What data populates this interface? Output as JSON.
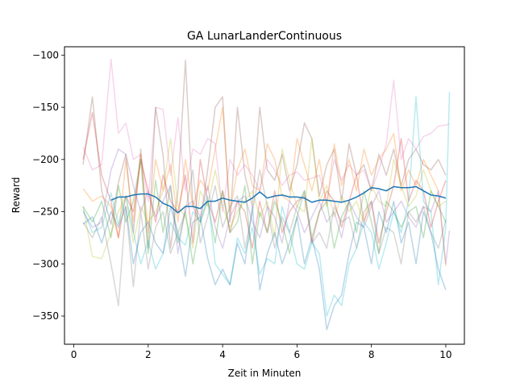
{
  "chart_data": {
    "type": "line",
    "title": "GA LunarLanderContinuous",
    "xlabel": "Zeit in Minuten",
    "ylabel": "Reward",
    "xlim": [
      -0.25,
      10.5
    ],
    "ylim": [
      -377,
      -92
    ],
    "xticks": [
      0,
      2,
      4,
      6,
      8,
      10
    ],
    "yticks": [
      -350,
      -300,
      -250,
      -200,
      -150,
      -100
    ],
    "grid": false,
    "legend": "none",
    "background_series_alpha": 0.3,
    "series": [
      {
        "color": "#e377c2",
        "x": [
          0.25,
          0.5,
          0.75,
          1.0,
          1.2,
          1.4,
          1.6,
          1.8,
          2.0,
          2.2,
          2.4,
          2.6,
          2.8,
          3.0,
          3.2,
          3.4,
          3.6,
          3.8,
          4.0,
          4.2,
          4.4,
          4.6,
          4.8,
          5.0,
          5.2,
          5.4,
          5.6,
          5.8,
          6.0,
          6.2,
          6.4,
          6.6,
          6.8,
          7.0,
          7.2,
          7.4,
          7.6,
          7.8,
          8.0,
          8.2,
          8.4,
          8.6,
          8.8,
          9.0,
          9.2,
          9.4,
          9.6,
          9.8,
          10.0,
          10.1
        ],
        "values": [
          -188,
          -210,
          -205,
          -104,
          -175,
          -165,
          -200,
          -195,
          -240,
          -150,
          -152,
          -215,
          -160,
          -230,
          -190,
          -195,
          -180,
          -185,
          -250,
          -200,
          -215,
          -205,
          -215,
          -230,
          -200,
          -210,
          -225,
          -215,
          -212,
          -220,
          -218,
          -215,
          -240,
          -200,
          -220,
          -205,
          -215,
          -210,
          -230,
          -210,
          -185,
          -124,
          -200,
          -180,
          -190,
          -178,
          -175,
          -168,
          -167,
          -166
        ]
      },
      {
        "color": "#8c564b",
        "x": [
          0.25,
          0.5,
          0.75,
          1.0,
          1.2,
          1.4,
          1.6,
          1.8,
          2.0,
          2.2,
          2.4,
          2.6,
          2.8,
          3.0,
          3.2,
          3.4,
          3.6,
          3.8,
          4.0,
          4.2,
          4.4,
          4.6,
          4.8,
          5.0,
          5.2,
          5.4,
          5.6,
          5.8,
          6.0,
          6.2,
          6.4,
          6.6,
          6.8,
          7.0,
          7.2,
          7.4,
          7.6,
          7.8,
          8.0,
          8.2,
          8.4,
          8.6,
          8.8,
          9.0,
          9.2,
          9.4,
          9.6,
          9.8,
          10.0
        ],
        "values": [
          -205,
          -140,
          -230,
          -262,
          -222,
          -195,
          -270,
          -190,
          -285,
          -150,
          -196,
          -285,
          -230,
          -105,
          -245,
          -260,
          -210,
          -150,
          -140,
          -260,
          -150,
          -215,
          -245,
          -150,
          -210,
          -220,
          -195,
          -230,
          -205,
          -165,
          -180,
          -235,
          -205,
          -190,
          -240,
          -185,
          -215,
          -205,
          -230,
          -195,
          -215,
          -190,
          -225,
          -200,
          -190,
          -205,
          -210,
          -200,
          -215
        ]
      },
      {
        "color": "#ff7f0e",
        "x": [
          0.25,
          0.5,
          0.75,
          1.0,
          1.2,
          1.4,
          1.6,
          1.8,
          2.0,
          2.2,
          2.4,
          2.6,
          2.8,
          3.0,
          3.2,
          3.4,
          3.6,
          3.8,
          4.0,
          4.2,
          4.4,
          4.6,
          4.8,
          5.0,
          5.2,
          5.4,
          5.6,
          5.8,
          6.0,
          6.2,
          6.4,
          6.6,
          6.8,
          7.0,
          7.2,
          7.4,
          7.6,
          7.8,
          8.0,
          8.2,
          8.4,
          8.6,
          8.8,
          9.0,
          9.2,
          9.4,
          9.6,
          9.8,
          10.0
        ],
        "values": [
          -228,
          -240,
          -235,
          -245,
          -275,
          -200,
          -260,
          -195,
          -270,
          -200,
          -230,
          -205,
          -260,
          -200,
          -245,
          -220,
          -230,
          -190,
          -150,
          -250,
          -210,
          -190,
          -225,
          -230,
          -185,
          -200,
          -235,
          -240,
          -180,
          -205,
          -230,
          -200,
          -245,
          -185,
          -225,
          -200,
          -230,
          -190,
          -215,
          -200,
          -190,
          -175,
          -230,
          -210,
          -225,
          -200,
          -215,
          -230,
          -302
        ]
      },
      {
        "color": "#d62728",
        "x": [
          0.25,
          0.5,
          0.75,
          1.0,
          1.2,
          1.4,
          1.6,
          1.8,
          2.0,
          2.2,
          2.4,
          2.6,
          2.8,
          3.0,
          3.2,
          3.4,
          3.6,
          3.8,
          4.0,
          4.2,
          4.4,
          4.6,
          4.8,
          5.0,
          5.2,
          5.4,
          5.6,
          5.8,
          6.0,
          6.2,
          6.4,
          6.6,
          6.8,
          7.0,
          7.2,
          7.4,
          7.6,
          7.8,
          8.0,
          8.2,
          8.4,
          8.6,
          8.8,
          9.0,
          9.2,
          9.4,
          9.6,
          9.8,
          10.0
        ],
        "values": [
          -200,
          -155,
          -215,
          -240,
          -275,
          -235,
          -250,
          -200,
          -230,
          -260,
          -215,
          -240,
          -250,
          -215,
          -280,
          -200,
          -240,
          -260,
          -230,
          -270,
          -240,
          -250,
          -285,
          -240,
          -270,
          -230,
          -270,
          -250,
          -240,
          -235,
          -280,
          -250,
          -230,
          -240,
          -265,
          -240,
          -215,
          -260,
          -240,
          -280,
          -250,
          -225,
          -180,
          -240,
          -220,
          -230,
          -265,
          -240,
          -220
        ]
      },
      {
        "color": "#bcbd22",
        "x": [
          0.25,
          0.5,
          0.75,
          1.0,
          1.2,
          1.4,
          1.6,
          1.8,
          2.0,
          2.2,
          2.4,
          2.6,
          2.8,
          3.0,
          3.2,
          3.4,
          3.6,
          3.8,
          4.0,
          4.2,
          4.4,
          4.6,
          4.8,
          5.0,
          5.2,
          5.4,
          5.6,
          5.8,
          6.0,
          6.2,
          6.4,
          6.6,
          6.8,
          7.0,
          7.2,
          7.4,
          7.6,
          7.8,
          8.0,
          8.2,
          8.4,
          8.6,
          8.8,
          9.0,
          9.2,
          9.4,
          9.6,
          9.8,
          10.0
        ],
        "values": [
          -245,
          -293,
          -295,
          -270,
          -250,
          -235,
          -280,
          -245,
          -260,
          -250,
          -230,
          -180,
          -245,
          -255,
          -285,
          -230,
          -245,
          -210,
          -245,
          -265,
          -250,
          -240,
          -230,
          -255,
          -240,
          -275,
          -190,
          -220,
          -245,
          -250,
          -180,
          -240,
          -225,
          -255,
          -235,
          -250,
          -240,
          -260,
          -225,
          -240,
          -245,
          -200,
          -225,
          -245,
          -235,
          -210,
          -230,
          -245,
          -240
        ]
      },
      {
        "color": "#2ca02c",
        "x": [
          0.25,
          0.5,
          0.75,
          1.0,
          1.2,
          1.4,
          1.6,
          1.8,
          2.0,
          2.2,
          2.4,
          2.6,
          2.8,
          3.0,
          3.2,
          3.4,
          3.6,
          3.8,
          4.0,
          4.2,
          4.4,
          4.6,
          4.8,
          5.0,
          5.2,
          5.4,
          5.6,
          5.8,
          6.0,
          6.2,
          6.4,
          6.6,
          6.8,
          7.0,
          7.2,
          7.4,
          7.6,
          7.8,
          8.0,
          8.2,
          8.4,
          8.6,
          8.8,
          9.0,
          9.2,
          9.4,
          9.6,
          9.8,
          10.0
        ],
        "values": [
          -245,
          -260,
          -240,
          -275,
          -225,
          -260,
          -240,
          -200,
          -290,
          -220,
          -270,
          -225,
          -280,
          -250,
          -300,
          -260,
          -240,
          -280,
          -230,
          -270,
          -260,
          -225,
          -300,
          -250,
          -270,
          -240,
          -260,
          -290,
          -255,
          -230,
          -275,
          -250,
          -240,
          -285,
          -255,
          -240,
          -270,
          -230,
          -260,
          -290,
          -240,
          -250,
          -265,
          -250,
          -245,
          -275,
          -230,
          -245,
          -260
        ]
      },
      {
        "color": "#9467bd",
        "x": [
          0.25,
          0.5,
          0.75,
          1.0,
          1.2,
          1.4,
          1.6,
          1.8,
          2.0,
          2.2,
          2.4,
          2.6,
          2.8,
          3.0,
          3.2,
          3.4,
          3.6,
          3.8,
          4.0,
          4.2,
          4.4,
          4.6,
          4.8,
          5.0,
          5.2,
          5.4,
          5.6,
          5.8,
          6.0,
          6.2,
          6.4,
          6.6,
          6.8,
          7.0,
          7.2,
          7.4,
          7.6,
          7.8,
          8.0,
          8.2,
          8.4,
          8.6,
          8.8,
          9.0,
          9.2,
          9.4,
          9.6,
          9.8,
          10.0,
          10.1
        ],
        "values": [
          -250,
          -265,
          -260,
          -210,
          -190,
          -195,
          -225,
          -250,
          -230,
          -255,
          -240,
          -225,
          -290,
          -245,
          -240,
          -255,
          -225,
          -265,
          -285,
          -255,
          -240,
          -235,
          -260,
          -275,
          -245,
          -255,
          -280,
          -240,
          -250,
          -270,
          -255,
          -240,
          -260,
          -250,
          -275,
          -240,
          -255,
          -265,
          -245,
          -230,
          -260,
          -250,
          -240,
          -255,
          -265,
          -245,
          -250,
          -230,
          -300,
          -268
        ]
      },
      {
        "color": "#7f7f7f",
        "x": [
          0.25,
          0.5,
          0.75,
          1.0,
          1.2,
          1.4,
          1.6,
          1.8,
          2.0,
          2.2,
          2.4,
          2.6,
          2.8,
          3.0,
          3.2,
          3.4,
          3.6,
          3.8,
          4.0,
          4.2,
          4.4,
          4.6,
          4.8,
          5.0,
          5.2,
          5.4,
          5.6,
          5.8,
          6.0,
          6.2,
          6.4,
          6.6,
          6.8,
          7.0,
          7.2,
          7.4,
          7.6,
          7.8,
          8.0,
          8.2,
          8.4,
          8.6,
          8.8,
          9.0,
          9.2,
          9.4,
          9.6,
          9.8,
          10.0
        ],
        "values": [
          -260,
          -275,
          -255,
          -300,
          -340,
          -245,
          -322,
          -250,
          -305,
          -265,
          -250,
          -290,
          -270,
          -250,
          -210,
          -280,
          -255,
          -225,
          -265,
          -245,
          -235,
          -285,
          -250,
          -210,
          -245,
          -285,
          -255,
          -270,
          -245,
          -230,
          -280,
          -270,
          -285,
          -245,
          -260,
          -255,
          -285,
          -250,
          -240,
          -290,
          -265,
          -270,
          -300,
          -250,
          -260,
          -245,
          -270,
          -285,
          -258
        ]
      },
      {
        "color": "#17becf",
        "x": [
          0.25,
          0.5,
          0.75,
          1.0,
          1.2,
          1.4,
          1.6,
          1.8,
          2.0,
          2.2,
          2.4,
          2.6,
          2.8,
          3.0,
          3.2,
          3.4,
          3.6,
          3.8,
          4.0,
          4.2,
          4.4,
          4.6,
          4.8,
          5.0,
          5.2,
          5.4,
          5.6,
          5.8,
          6.0,
          6.2,
          6.4,
          6.6,
          6.8,
          7.0,
          7.2,
          7.4,
          7.6,
          7.8,
          8.0,
          8.2,
          8.4,
          8.6,
          8.8,
          9.0,
          9.2,
          9.4,
          9.6,
          9.8,
          10.0,
          10.1
        ],
        "values": [
          -248,
          -270,
          -265,
          -232,
          -262,
          -235,
          -270,
          -300,
          -278,
          -305,
          -290,
          -260,
          -275,
          -282,
          -250,
          -260,
          -235,
          -300,
          -310,
          -320,
          -275,
          -290,
          -265,
          -310,
          -295,
          -300,
          -245,
          -270,
          -300,
          -305,
          -280,
          -290,
          -350,
          -330,
          -340,
          -300,
          -285,
          -260,
          -270,
          -305,
          -280,
          -250,
          -270,
          -240,
          -140,
          -240,
          -250,
          -320,
          -265,
          -135
        ]
      },
      {
        "color": "#1f77b4",
        "x": [
          0.25,
          0.5,
          0.75,
          1.0,
          1.2,
          1.4,
          1.6,
          1.8,
          2.0,
          2.2,
          2.4,
          2.6,
          2.8,
          3.0,
          3.2,
          3.4,
          3.6,
          3.8,
          4.0,
          4.2,
          4.4,
          4.6,
          4.8,
          5.0,
          5.2,
          5.4,
          5.6,
          5.8,
          6.0,
          6.2,
          6.4,
          6.6,
          6.8,
          7.0,
          7.2,
          7.4,
          7.6,
          7.8,
          8.0,
          8.2,
          8.4,
          8.6,
          8.8,
          9.0,
          9.2,
          9.4,
          9.6,
          9.8,
          10.0
        ],
        "values": [
          -262,
          -255,
          -280,
          -250,
          -265,
          -245,
          -300,
          -270,
          -260,
          -280,
          -290,
          -245,
          -270,
          -312,
          -260,
          -255,
          -295,
          -320,
          -305,
          -320,
          -280,
          -300,
          -245,
          -325,
          -290,
          -270,
          -300,
          -280,
          -255,
          -300,
          -275,
          -305,
          -363,
          -340,
          -330,
          -290,
          -260,
          -265,
          -300,
          -250,
          -270,
          -240,
          -280,
          -260,
          -300,
          -250,
          -270,
          -305,
          -325
        ]
      }
    ],
    "mean_series": {
      "color": "#1f77b4",
      "x": [
        1.0,
        1.2,
        1.4,
        1.6,
        1.8,
        2.0,
        2.2,
        2.4,
        2.6,
        2.8,
        3.0,
        3.2,
        3.4,
        3.6,
        3.8,
        4.0,
        4.2,
        4.4,
        4.6,
        4.8,
        5.0,
        5.2,
        5.4,
        5.6,
        5.8,
        6.0,
        6.2,
        6.4,
        6.6,
        6.8,
        7.0,
        7.2,
        7.4,
        7.6,
        7.8,
        8.0,
        8.2,
        8.4,
        8.6,
        8.8,
        9.0,
        9.2,
        9.4,
        9.6,
        9.8,
        10.0
      ],
      "values": [
        -239,
        -236,
        -236,
        -234,
        -233,
        -233,
        -236,
        -242,
        -245,
        -251,
        -245,
        -245,
        -247,
        -240,
        -240,
        -237,
        -239,
        -240,
        -241,
        -237,
        -231,
        -237,
        -235,
        -234,
        -236,
        -236,
        -237,
        -241,
        -239,
        -239,
        -240,
        -241,
        -239,
        -236,
        -232,
        -227,
        -228,
        -230,
        -226,
        -227,
        -227,
        -226,
        -230,
        -234,
        -235,
        -237
      ]
    }
  }
}
